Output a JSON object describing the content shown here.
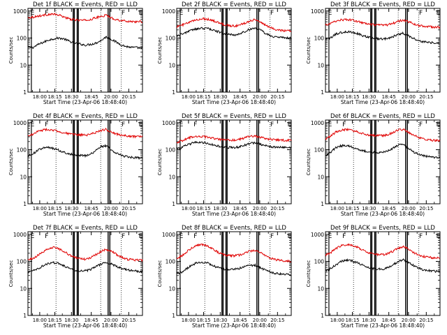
{
  "figure": {
    "type": "line",
    "ylabel": "Counts/sec",
    "xlabel": "Start Time (23-Apr-06 18:48:40)",
    "x_tick_labels": [
      "18:00",
      "18:15",
      "18:30",
      "18:45",
      "20:00",
      "20:15"
    ],
    "y_tick_labels": [
      "1",
      "10",
      "100",
      "1000"
    ],
    "y_scale": "log",
    "ylim": [
      1,
      1000
    ],
    "colors": {
      "events": "#000000",
      "lld": "#e00000"
    }
  },
  "chart_data": [
    {
      "title": "Det 1f BLACK = Events, RED = LLD",
      "markers": [
        "E",
        "F",
        "F",
        "E"
      ],
      "series": [
        {
          "name": "BLACK = Events",
          "y_knots": [
            45,
            45,
            58,
            70,
            85,
            95,
            100,
            92,
            75,
            65,
            60,
            55,
            58,
            65,
            80,
            110,
            90,
            70,
            55,
            48,
            45,
            44,
            42
          ]
        },
        {
          "name": "RED = LLD",
          "y_knots": [
            570,
            600,
            650,
            700,
            750,
            760,
            700,
            600,
            500,
            470,
            460,
            450,
            480,
            560,
            620,
            700,
            560,
            480,
            440,
            420,
            410,
            400,
            400
          ]
        }
      ]
    },
    {
      "title": "Det 2f BLACK = Events, RED = LLD",
      "markers": [
        "E",
        "F",
        "F",
        "E"
      ],
      "series": [
        {
          "name": "BLACK = Events",
          "y_knots": [
            120,
            140,
            170,
            200,
            220,
            230,
            225,
            200,
            170,
            150,
            135,
            130,
            140,
            170,
            210,
            240,
            200,
            150,
            120,
            110,
            105,
            100,
            100
          ]
        },
        {
          "name": "RED = LLD",
          "y_knots": [
            260,
            300,
            350,
            420,
            480,
            520,
            500,
            440,
            370,
            320,
            290,
            280,
            300,
            350,
            430,
            490,
            400,
            300,
            240,
            210,
            195,
            185,
            180
          ]
        }
      ]
    },
    {
      "title": "Det 3f BLACK = Events, RED = LLD",
      "markers": [
        "E",
        "F",
        "F",
        "E"
      ],
      "series": [
        {
          "name": "BLACK = Events",
          "y_knots": [
            90,
            100,
            140,
            160,
            170,
            165,
            150,
            125,
            110,
            100,
            95,
            92,
            98,
            115,
            140,
            150,
            120,
            95,
            80,
            72,
            68,
            65,
            62
          ]
        },
        {
          "name": "RED = LLD",
          "y_knots": [
            300,
            340,
            430,
            470,
            480,
            460,
            420,
            370,
            330,
            310,
            300,
            295,
            310,
            350,
            420,
            460,
            400,
            330,
            290,
            270,
            260,
            255,
            250
          ]
        }
      ]
    },
    {
      "title": "Det 4f BLACK = Events, RED = LLD",
      "markers": [
        "E",
        "F",
        "F",
        "E"
      ],
      "series": [
        {
          "name": "BLACK = Events",
          "y_knots": [
            60,
            70,
            100,
            115,
            120,
            110,
            95,
            80,
            70,
            65,
            62,
            60,
            68,
            90,
            130,
            140,
            100,
            75,
            60,
            55,
            52,
            50,
            50
          ]
        },
        {
          "name": "RED = LLD",
          "y_knots": [
            320,
            380,
            480,
            540,
            560,
            520,
            470,
            420,
            380,
            360,
            350,
            345,
            370,
            430,
            520,
            560,
            460,
            380,
            340,
            320,
            310,
            305,
            300
          ]
        }
      ]
    },
    {
      "title": "Det 5f BLACK = Events, RED = LLD",
      "markers": [
        "E",
        "F",
        "F",
        "E"
      ],
      "series": [
        {
          "name": "BLACK = Events",
          "y_knots": [
            110,
            120,
            150,
            175,
            190,
            185,
            170,
            150,
            135,
            125,
            120,
            120,
            128,
            145,
            170,
            180,
            160,
            140,
            130,
            125,
            122,
            120,
            120
          ]
        },
        {
          "name": "RED = LLD",
          "y_knots": [
            190,
            210,
            260,
            300,
            320,
            310,
            285,
            260,
            240,
            230,
            225,
            225,
            240,
            270,
            310,
            320,
            290,
            260,
            240,
            230,
            225,
            222,
            220
          ]
        }
      ]
    },
    {
      "title": "Det 6f BLACK = Events, RED = LLD",
      "markers": [
        "E",
        "F",
        "F",
        "E"
      ],
      "series": [
        {
          "name": "BLACK = Events",
          "y_knots": [
            60,
            80,
            120,
            140,
            145,
            130,
            110,
            95,
            85,
            80,
            78,
            80,
            90,
            115,
            150,
            150,
            110,
            80,
            65,
            58,
            55,
            52,
            50
          ]
        },
        {
          "name": "RED = LLD",
          "y_knots": [
            250,
            320,
            450,
            520,
            560,
            520,
            460,
            400,
            360,
            340,
            330,
            330,
            360,
            430,
            540,
            560,
            440,
            340,
            280,
            250,
            230,
            220,
            210
          ]
        }
      ]
    },
    {
      "title": "Det 7f BLACK = Events, RED = LLD",
      "markers": [
        "E",
        "F",
        "F",
        "E"
      ],
      "series": [
        {
          "name": "BLACK = Events",
          "y_knots": [
            40,
            45,
            55,
            70,
            85,
            90,
            82,
            68,
            55,
            48,
            45,
            45,
            50,
            62,
            78,
            90,
            80,
            65,
            55,
            48,
            45,
            43,
            42
          ]
        },
        {
          "name": "RED = LLD",
          "y_knots": [
            110,
            130,
            170,
            230,
            300,
            330,
            290,
            230,
            170,
            140,
            125,
            120,
            135,
            175,
            230,
            280,
            240,
            180,
            140,
            120,
            115,
            112,
            110
          ]
        }
      ]
    },
    {
      "title": "Det 8f BLACK = Events, RED = LLD",
      "markers": [
        "E",
        "F",
        "F",
        "E"
      ],
      "series": [
        {
          "name": "BLACK = Events",
          "y_knots": [
            35,
            40,
            55,
            75,
            90,
            95,
            85,
            70,
            58,
            52,
            50,
            50,
            55,
            62,
            70,
            72,
            60,
            48,
            40,
            36,
            34,
            33,
            32
          ]
        },
        {
          "name": "RED = LLD",
          "y_knots": [
            130,
            160,
            230,
            330,
            400,
            420,
            360,
            280,
            210,
            180,
            165,
            160,
            170,
            200,
            240,
            260,
            210,
            160,
            130,
            115,
            108,
            104,
            100
          ]
        }
      ]
    },
    {
      "title": "Det 9f BLACK = Events, RED = LLD",
      "markers": [
        "E",
        "F",
        "F",
        "E"
      ],
      "series": [
        {
          "name": "BLACK = Events",
          "y_knots": [
            45,
            55,
            75,
            100,
            110,
            105,
            90,
            75,
            62,
            55,
            52,
            52,
            58,
            75,
            100,
            115,
            90,
            68,
            55,
            48,
            45,
            43,
            42
          ]
        },
        {
          "name": "RED = LLD",
          "y_knots": [
            170,
            210,
            300,
            380,
            420,
            400,
            340,
            270,
            220,
            190,
            180,
            178,
            195,
            240,
            310,
            350,
            280,
            210,
            170,
            150,
            140,
            135,
            130
          ]
        }
      ]
    }
  ]
}
